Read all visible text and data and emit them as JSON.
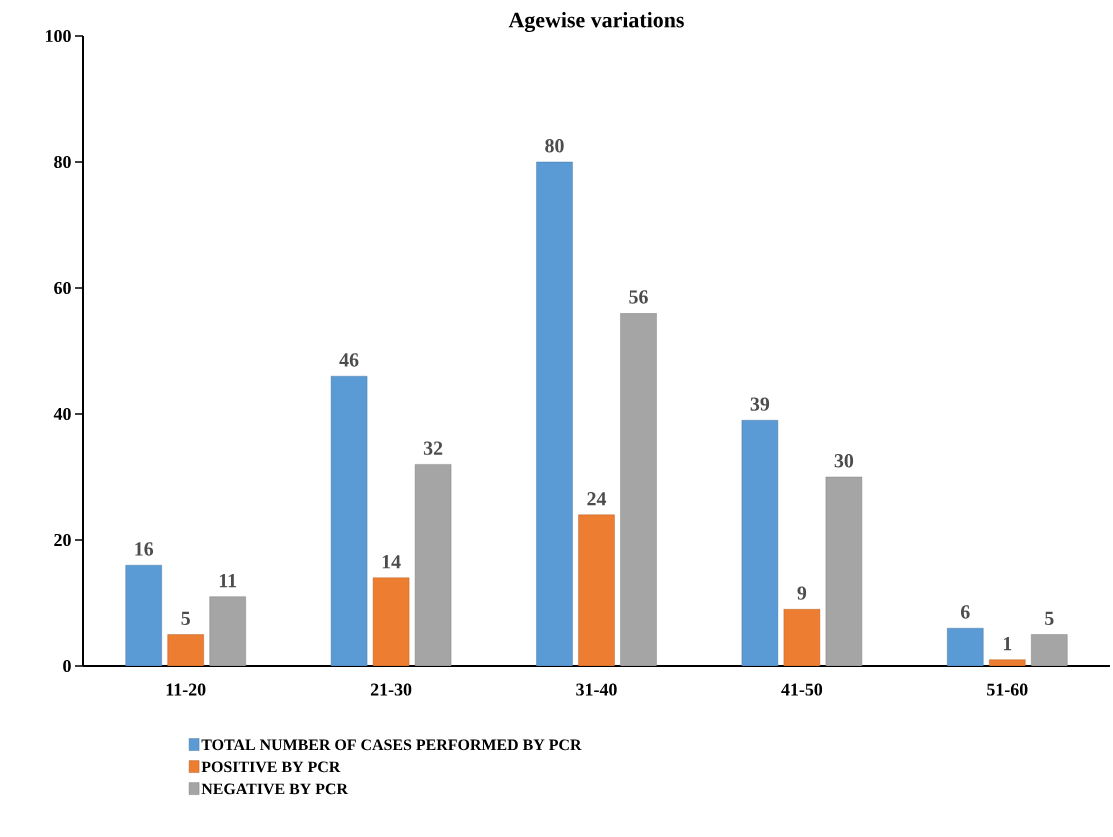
{
  "chart_data": {
    "type": "bar",
    "title": "Agewise variations",
    "categories": [
      "11-20",
      "21-30",
      "31-40",
      "41-50",
      "51-60"
    ],
    "series": [
      {
        "name": "TOTAL NUMBER OF CASES PERFORMED BY PCR",
        "color": "#5b9bd5",
        "values": [
          16,
          46,
          80,
          39,
          6
        ]
      },
      {
        "name": "POSITIVE BY PCR",
        "color": "#ed7d31",
        "values": [
          5,
          14,
          24,
          9,
          1
        ]
      },
      {
        "name": "NEGATIVE BY PCR",
        "color": "#a5a5a5",
        "values": [
          11,
          32,
          56,
          30,
          5
        ]
      }
    ],
    "ylim": [
      0,
      100
    ],
    "yticks": [
      0,
      20,
      40,
      60,
      80,
      100
    ],
    "data_labels": true,
    "legend": "bottom"
  }
}
